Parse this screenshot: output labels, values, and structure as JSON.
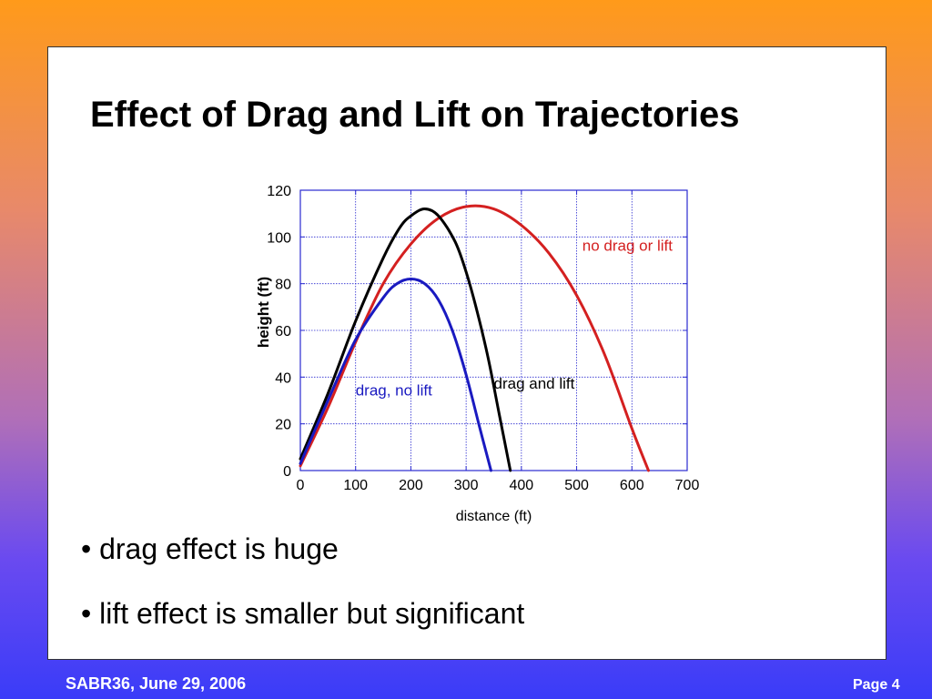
{
  "slide": {
    "title": "Effect of Drag and Lift on Trajectories",
    "bullets": [
      "• drag effect is huge",
      "• lift effect is smaller but significant"
    ],
    "footer_left": "SABR36, June 29, 2006",
    "footer_right": "Page 4"
  },
  "chart_data": {
    "type": "line",
    "title": "",
    "xlabel": "distance (ft)",
    "ylabel": "height (ft)",
    "xlim": [
      0,
      700
    ],
    "ylim": [
      0,
      120
    ],
    "xticks": [
      0,
      100,
      200,
      300,
      400,
      500,
      600,
      700
    ],
    "yticks": [
      0,
      20,
      40,
      60,
      80,
      100,
      120
    ],
    "grid": true,
    "series": [
      {
        "name": "no drag or lift",
        "color": "#d42020",
        "x": [
          0,
          50,
          100,
          150,
          200,
          250,
          300,
          350,
          400,
          450,
          500,
          550,
          600,
          630
        ],
        "y": [
          2,
          27,
          55,
          80,
          97,
          108,
          113,
          112,
          105,
          93,
          75,
          50,
          18,
          0
        ]
      },
      {
        "name": "drag and lift",
        "color": "#000000",
        "x": [
          0,
          50,
          100,
          150,
          180,
          200,
          225,
          250,
          280,
          300,
          320,
          340,
          360,
          380
        ],
        "y": [
          5,
          33,
          64,
          91,
          104,
          109,
          112,
          109,
          98,
          85,
          68,
          48,
          24,
          0
        ]
      },
      {
        "name": "drag, no lift",
        "color": "#1a1ac0",
        "x": [
          0,
          50,
          100,
          150,
          175,
          200,
          225,
          250,
          275,
          300,
          325,
          345
        ],
        "y": [
          3,
          30,
          56,
          74,
          80,
          82,
          80,
          73,
          60,
          41,
          18,
          0
        ]
      }
    ],
    "annotations": [
      {
        "text": "no drag or lift",
        "color": "#d42020"
      },
      {
        "text": "drag and lift",
        "color": "#000000"
      },
      {
        "text": "drag, no lift",
        "color": "#1a1ac0"
      }
    ]
  }
}
